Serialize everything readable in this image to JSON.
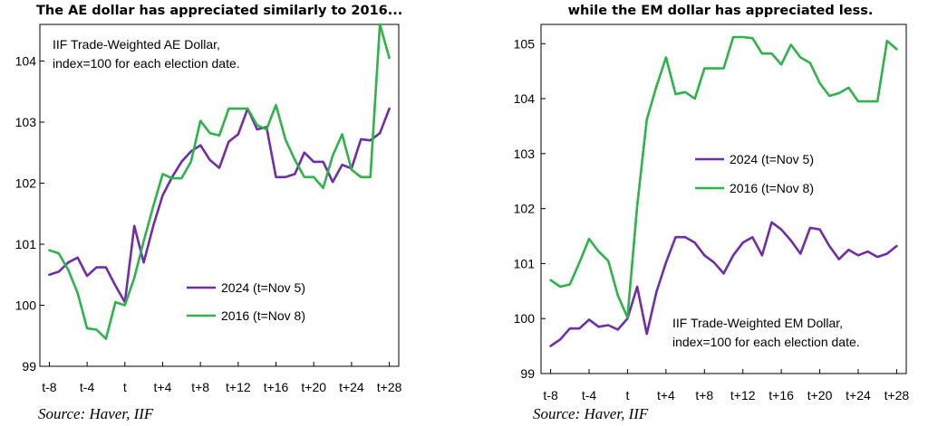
{
  "chart_data": [
    {
      "type": "line",
      "title": "The AE dollar has appreciated similarly to 2016...",
      "annotation": [
        "IIF Trade-Weighted AE Dollar,",
        "index=100 for each election date."
      ],
      "source": "Source: Haver, IIF",
      "x_tick_labels": [
        "t-8",
        "t-4",
        "t",
        "t+4",
        "t+8",
        "t+12",
        "t+16",
        "t+20",
        "t+24",
        "t+28"
      ],
      "x_tick_values": [
        -8,
        -4,
        0,
        4,
        8,
        12,
        16,
        20,
        24,
        28
      ],
      "xlim": [
        -9,
        29
      ],
      "ylim": [
        99,
        104.6
      ],
      "y_ticks": [
        99,
        100,
        101,
        102,
        103,
        104
      ],
      "grid": false,
      "legend_position": "bottom-right",
      "series": [
        {
          "name": "2024 (t=Nov 5)",
          "color": "#6f2da8",
          "x": [
            -8,
            -7,
            -6,
            -5,
            -4,
            -3,
            -2,
            -1,
            0,
            1,
            2,
            3,
            4,
            5,
            6,
            7,
            8,
            9,
            10,
            11,
            12,
            13,
            14,
            15,
            16,
            17,
            18,
            19,
            20,
            21,
            22,
            23,
            24,
            25,
            26,
            27,
            28
          ],
          "values": [
            100.5,
            100.55,
            100.7,
            100.78,
            100.48,
            100.62,
            100.62,
            100.32,
            100.05,
            101.3,
            100.7,
            101.3,
            101.8,
            102.1,
            102.35,
            102.52,
            102.62,
            102.38,
            102.25,
            102.68,
            102.8,
            103.22,
            102.88,
            102.92,
            102.1,
            102.1,
            102.15,
            102.5,
            102.35,
            102.35,
            102.02,
            102.3,
            102.24,
            102.72,
            102.7,
            102.82,
            103.22
          ]
        },
        {
          "name": "2016 (t=Nov 8)",
          "color": "#2db34a",
          "x": [
            -8,
            -7,
            -6,
            -5,
            -4,
            -3,
            -2,
            -1,
            0,
            1,
            2,
            3,
            4,
            5,
            6,
            7,
            8,
            9,
            10,
            11,
            12,
            13,
            14,
            15,
            16,
            17,
            18,
            19,
            20,
            21,
            22,
            23,
            24,
            25,
            26,
            27,
            28
          ],
          "values": [
            100.9,
            100.85,
            100.58,
            100.2,
            99.62,
            99.6,
            99.45,
            100.05,
            100,
            100.45,
            101.05,
            101.62,
            102.15,
            102.08,
            102.08,
            102.35,
            103.02,
            102.82,
            102.78,
            103.22,
            103.22,
            103.22,
            102.95,
            102.88,
            103.28,
            102.72,
            102.38,
            102.1,
            102.1,
            101.92,
            102.45,
            102.8,
            102.22,
            102.1,
            102.1,
            104.6,
            104.05
          ]
        }
      ]
    },
    {
      "type": "line",
      "title": "while the EM dollar has appreciated less.",
      "annotation": [
        "IIF Trade-Weighted EM Dollar,",
        "index=100 for each election date."
      ],
      "source": "Source: Haver, IIF",
      "x_tick_labels": [
        "t-8",
        "t-4",
        "t",
        "t+4",
        "t+8",
        "t+12",
        "t+16",
        "t+20",
        "t+24",
        "t+28"
      ],
      "x_tick_values": [
        -8,
        -4,
        0,
        4,
        8,
        12,
        16,
        20,
        24,
        28
      ],
      "xlim": [
        -9,
        29
      ],
      "ylim": [
        99,
        105.35
      ],
      "y_ticks": [
        99,
        100,
        101,
        102,
        103,
        104,
        105
      ],
      "grid": false,
      "legend_position": "center-right",
      "series": [
        {
          "name": "2024 (t=Nov 5)",
          "color": "#6f2da8",
          "x": [
            -8,
            -7,
            -6,
            -5,
            -4,
            -3,
            -2,
            -1,
            0,
            1,
            2,
            3,
            4,
            5,
            6,
            7,
            8,
            9,
            10,
            11,
            12,
            13,
            14,
            15,
            16,
            17,
            18,
            19,
            20,
            21,
            22,
            23,
            24,
            25,
            26,
            27,
            28
          ],
          "values": [
            99.5,
            99.62,
            99.82,
            99.82,
            99.98,
            99.85,
            99.88,
            99.8,
            100,
            100.58,
            99.72,
            100.48,
            101.02,
            101.48,
            101.48,
            101.38,
            101.15,
            101.02,
            100.82,
            101.15,
            101.38,
            101.48,
            101.15,
            101.75,
            101.62,
            101.42,
            101.18,
            101.65,
            101.62,
            101.32,
            101.08,
            101.25,
            101.15,
            101.22,
            101.12,
            101.18,
            101.32
          ]
        },
        {
          "name": "2016 (t=Nov 8)",
          "color": "#2db34a",
          "x": [
            -8,
            -7,
            -6,
            -5,
            -4,
            -3,
            -2,
            -1,
            0,
            1,
            2,
            3,
            4,
            5,
            6,
            7,
            8,
            9,
            10,
            11,
            12,
            13,
            14,
            15,
            16,
            17,
            18,
            19,
            20,
            21,
            22,
            23,
            24,
            25,
            26,
            27,
            28
          ],
          "values": [
            100.7,
            100.58,
            100.62,
            101.02,
            101.45,
            101.22,
            101.05,
            100.42,
            100.02,
            102.05,
            103.62,
            104.22,
            104.75,
            104.08,
            104.12,
            104,
            104.55,
            104.55,
            104.55,
            105.12,
            105.12,
            105.1,
            104.82,
            104.82,
            104.62,
            104.98,
            104.75,
            104.65,
            104.28,
            104.05,
            104.1,
            104.2,
            103.95,
            103.95,
            103.95,
            105.05,
            104.9
          ]
        }
      ]
    }
  ]
}
